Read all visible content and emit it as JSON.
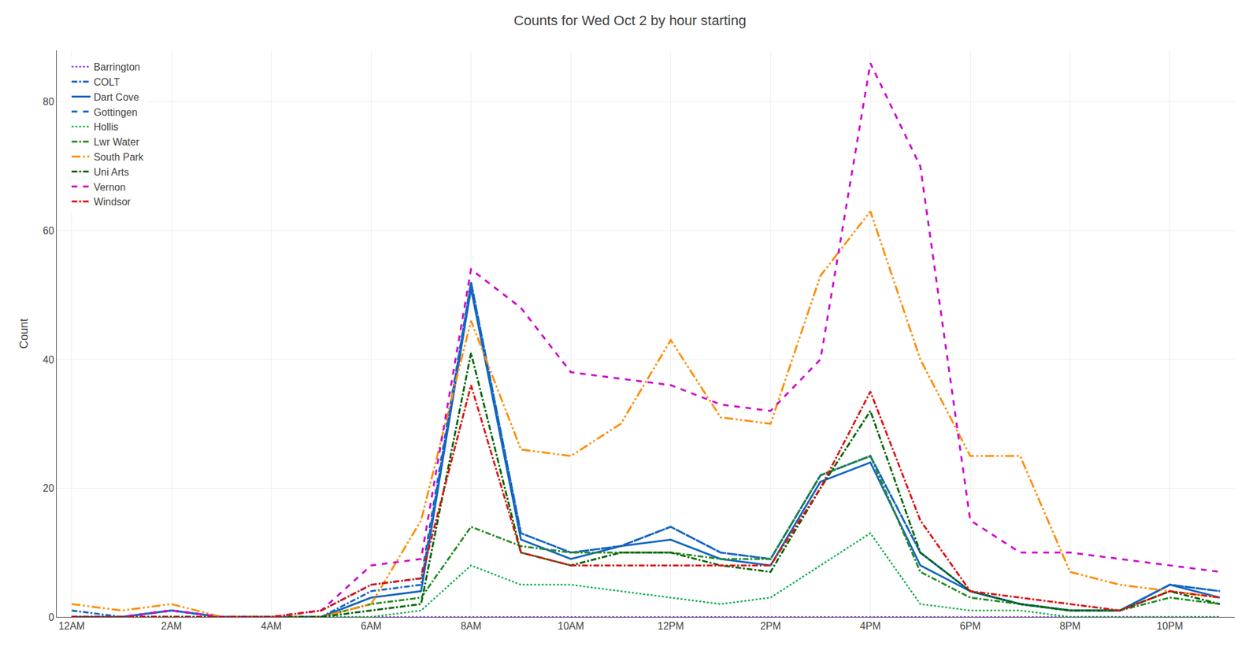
{
  "chart_data": {
    "type": "line",
    "title": "Counts for Wed Oct 2 by hour starting",
    "ylabel": "Count",
    "x": [
      0,
      1,
      2,
      3,
      4,
      5,
      6,
      7,
      8,
      9,
      10,
      11,
      12,
      13,
      14,
      15,
      16,
      17,
      18,
      19,
      20,
      21,
      22,
      23
    ],
    "xlim": [
      -0.3,
      23.3
    ],
    "xticks": [
      {
        "value": 0,
        "label": "12AM"
      },
      {
        "value": 2,
        "label": "2AM"
      },
      {
        "value": 4,
        "label": "4AM"
      },
      {
        "value": 6,
        "label": "6AM"
      },
      {
        "value": 8,
        "label": "8AM"
      },
      {
        "value": 10,
        "label": "10AM"
      },
      {
        "value": 12,
        "label": "12PM"
      },
      {
        "value": 14,
        "label": "2PM"
      },
      {
        "value": 16,
        "label": "4PM"
      },
      {
        "value": 18,
        "label": "6PM"
      },
      {
        "value": 20,
        "label": "8PM"
      },
      {
        "value": 22,
        "label": "10PM"
      }
    ],
    "ylim": [
      0,
      88
    ],
    "yticks": [
      0,
      20,
      40,
      60,
      80
    ],
    "grid": true,
    "legend": "upper left",
    "series": [
      {
        "name": "Barrington",
        "color": "#9B30FF",
        "line_style": "dotted",
        "values": [
          0,
          0,
          0,
          0,
          0,
          0,
          0,
          0,
          0,
          0,
          0,
          0,
          0,
          0,
          0,
          0,
          0,
          0,
          0,
          0,
          0,
          0,
          0,
          0
        ]
      },
      {
        "name": "COLT",
        "color": "#1565C0",
        "line_style": "dashdot",
        "values": [
          1,
          0,
          1,
          0,
          0,
          0,
          4,
          5,
          52,
          13,
          10,
          11,
          14,
          10,
          9,
          22,
          25,
          10,
          4,
          2,
          1,
          1,
          5,
          4
        ]
      },
      {
        "name": "Dart Cove",
        "color": "#1565C0",
        "line_style": "solid",
        "values": [
          0,
          0,
          1,
          0,
          0,
          0,
          3,
          4,
          51,
          12,
          9,
          11,
          12,
          9,
          8,
          21,
          24,
          8,
          4,
          2,
          1,
          1,
          5,
          3
        ]
      },
      {
        "name": "Gottingen",
        "color": "#1565C0",
        "line_style": "dashed",
        "values": [
          0,
          0,
          1,
          0,
          0,
          1,
          5,
          6,
          52,
          13,
          10,
          11,
          14,
          10,
          9,
          22,
          25,
          10,
          4,
          2,
          1,
          1,
          5,
          4
        ]
      },
      {
        "name": "Hollis",
        "color": "#00AA44",
        "line_style": "dotted",
        "values": [
          0,
          0,
          0,
          0,
          0,
          0,
          0,
          1,
          8,
          5,
          5,
          4,
          3,
          2,
          3,
          8,
          13,
          2,
          1,
          1,
          0,
          0,
          0,
          0
        ]
      },
      {
        "name": "Lwr Water",
        "color": "#228B22",
        "line_style": "dashdot",
        "values": [
          0,
          0,
          0,
          0,
          0,
          0,
          2,
          3,
          14,
          11,
          10,
          10,
          10,
          9,
          9,
          22,
          25,
          7,
          3,
          2,
          1,
          1,
          3,
          2
        ]
      },
      {
        "name": "South Park",
        "color": "#FF8C00",
        "line_style": "dashdotdot",
        "values": [
          2,
          1,
          2,
          0,
          0,
          0,
          2,
          15,
          46,
          26,
          25,
          30,
          43,
          31,
          30,
          53,
          63,
          40,
          25,
          25,
          7,
          5,
          4,
          3
        ]
      },
      {
        "name": "Uni Arts",
        "color": "#006400",
        "line_style": "dashdot",
        "values": [
          0,
          0,
          0,
          0,
          0,
          0,
          1,
          2,
          41,
          10,
          8,
          10,
          10,
          8,
          7,
          20,
          32,
          10,
          4,
          2,
          1,
          1,
          4,
          2
        ]
      },
      {
        "name": "Vernon",
        "color": "#CC00CC",
        "line_style": "dashed",
        "values": [
          0,
          0,
          1,
          0,
          0,
          1,
          8,
          9,
          54,
          48,
          38,
          37,
          36,
          33,
          32,
          40,
          86,
          70,
          15,
          10,
          10,
          9,
          8,
          7
        ]
      },
      {
        "name": "Windsor",
        "color": "#DD1111",
        "line_style": "dashdot",
        "values": [
          0,
          0,
          0,
          0,
          0,
          1,
          5,
          6,
          36,
          10,
          8,
          8,
          8,
          8,
          8,
          20,
          35,
          15,
          4,
          3,
          2,
          1,
          4,
          3
        ]
      }
    ]
  }
}
